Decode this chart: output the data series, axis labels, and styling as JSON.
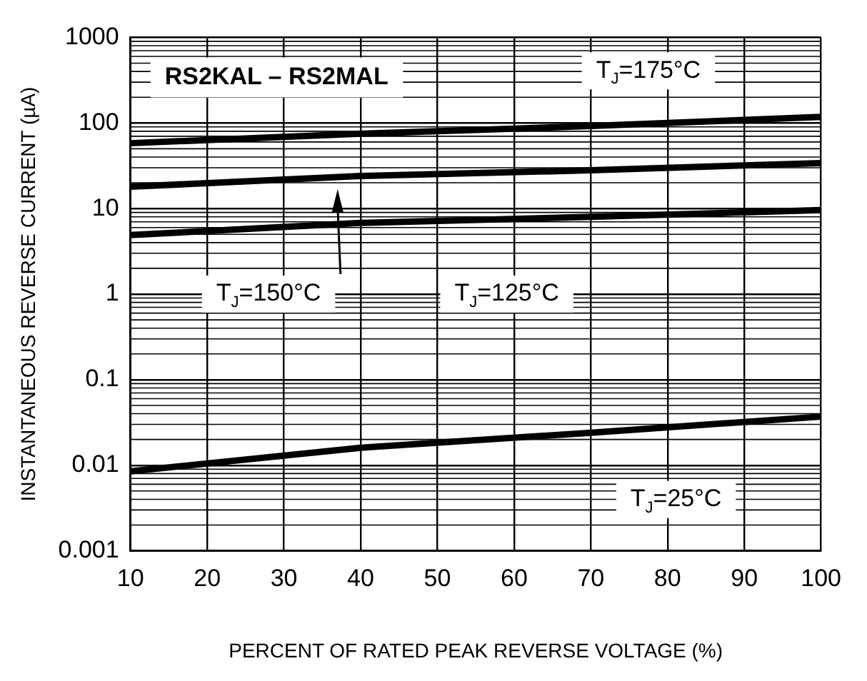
{
  "chart_data": {
    "type": "line",
    "title": "RS2KAL – RS2MAL",
    "xlabel": "PERCENT OF RATED PEAK REVERSE VOLTAGE (%)",
    "ylabel": "INSTANTANEOUS REVERSE CURRENT (µA)",
    "x": [
      10,
      40,
      70,
      100
    ],
    "series": [
      {
        "color": "#000000",
        "values": [
          58,
          75,
          92,
          118
        ]
      },
      {
        "color": "#000000",
        "values": [
          18,
          24,
          28,
          34
        ]
      },
      {
        "color": "#000000",
        "values": [
          4.9,
          6.8,
          8.0,
          9.6
        ]
      },
      {
        "color": "#000000",
        "values": [
          0.0085,
          0.016,
          0.024,
          0.037
        ]
      }
    ],
    "annotations": [
      "T$_{J}$=175°C",
      "T$_{J}$=150°C",
      "T$_{J}$=125°C",
      "T$_{J}$=25°C"
    ],
    "xlim": [
      10,
      100
    ],
    "xticks": [
      10,
      20,
      30,
      40,
      50,
      60,
      70,
      80,
      90,
      100
    ],
    "ylim": [
      0.001,
      1000
    ],
    "yticks": [
      0.001,
      0.01,
      0.1,
      1,
      10,
      100,
      1000
    ],
    "log": "y",
    "grid": true,
    "legend": false,
    "marker": "none",
    "line_style": "solid"
  }
}
